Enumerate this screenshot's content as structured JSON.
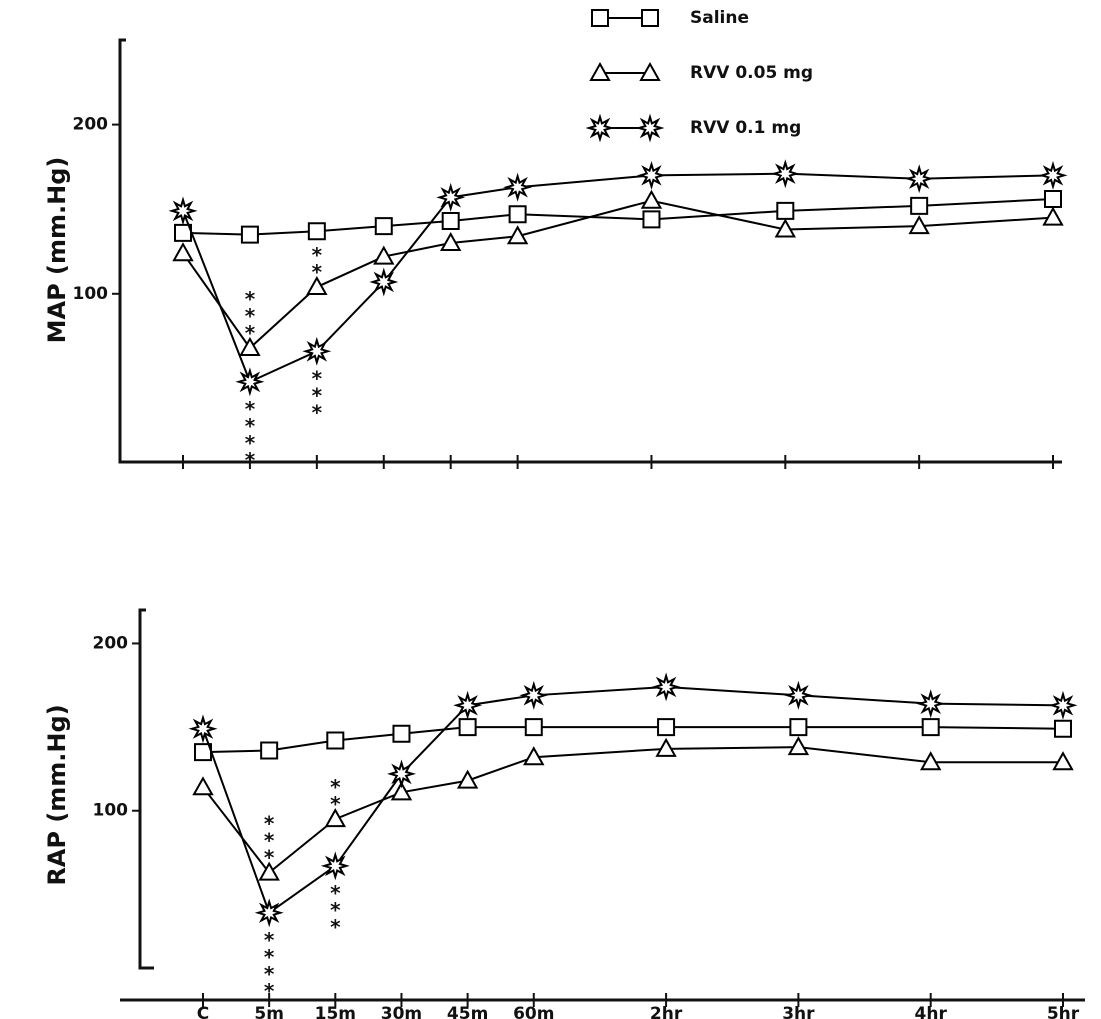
{
  "chart_data": [
    {
      "type": "line",
      "y_label": "MAP (mm.Hg)",
      "categories": [
        null,
        null,
        null,
        null,
        null,
        null,
        null,
        null,
        null,
        null
      ],
      "series": [
        {
          "name": "Saline",
          "marker": "square",
          "color": "#000000",
          "values": [
            136,
            135,
            137,
            140,
            143,
            147,
            144,
            149,
            152,
            156
          ]
        },
        {
          "name": "RVV 0.05 mg",
          "marker": "triangle",
          "color": "#000000",
          "values": [
            124,
            68,
            104,
            122,
            130,
            134,
            155,
            138,
            140,
            145
          ]
        },
        {
          "name": "RVV 0.1 mg",
          "marker": "star",
          "color": "#000000",
          "values": [
            149,
            48,
            66,
            107,
            157,
            163,
            170,
            171,
            168,
            170
          ]
        }
      ],
      "annotations": [
        {
          "text": "***",
          "category_index": 1,
          "series_index": 1,
          "side": "above"
        },
        {
          "text": "****",
          "category_index": 1,
          "series_index": 2,
          "side": "below"
        },
        {
          "text": "**",
          "category_index": 2,
          "series_index": 1,
          "side": "above"
        },
        {
          "text": "***",
          "category_index": 2,
          "series_index": 2,
          "side": "below"
        }
      ],
      "ylim": [
        0,
        250
      ],
      "yticks": [
        100,
        200
      ],
      "legend": true,
      "legend_position": "top-right"
    },
    {
      "type": "line",
      "y_label": "RAP (mm.Hg)",
      "categories": [
        "C",
        "5m",
        "15m",
        "30m",
        "45m",
        "60m",
        "2hr",
        "3hr",
        "4hr",
        "5hr"
      ],
      "series": [
        {
          "name": "Saline",
          "marker": "square",
          "color": "#000000",
          "values": [
            135,
            136,
            142,
            146,
            150,
            150,
            150,
            150,
            150,
            149
          ]
        },
        {
          "name": "RVV 0.05 mg",
          "marker": "triangle",
          "color": "#000000",
          "values": [
            114,
            63,
            95,
            111,
            118,
            132,
            137,
            138,
            129,
            129
          ]
        },
        {
          "name": "RVV 0.1 mg",
          "marker": "star",
          "color": "#000000",
          "values": [
            149,
            39,
            67,
            122,
            163,
            169,
            174,
            169,
            164,
            163
          ]
        }
      ],
      "annotations": [
        {
          "text": "***",
          "category_index": 1,
          "series_index": 1,
          "side": "above"
        },
        {
          "text": "****",
          "category_index": 1,
          "series_index": 2,
          "side": "below"
        },
        {
          "text": "**",
          "category_index": 2,
          "series_index": 1,
          "side": "above"
        },
        {
          "text": "***",
          "category_index": 2,
          "series_index": 2,
          "side": "below"
        }
      ],
      "ylim": [
        0,
        220
      ],
      "yticks": [
        100,
        200
      ],
      "legend": false
    }
  ]
}
